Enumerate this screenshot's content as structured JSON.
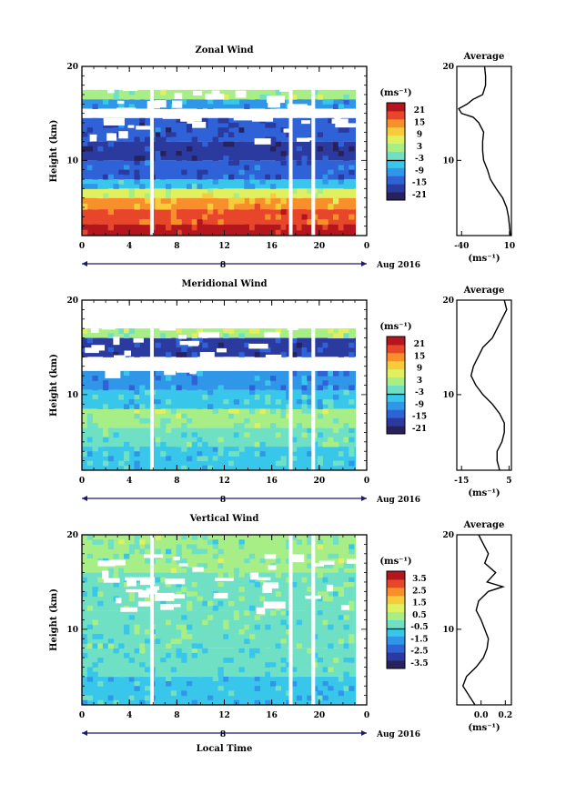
{
  "chart_data": [
    {
      "type": "heatmap",
      "title": "Zonal Wind",
      "ylabel": "Height (km)",
      "xlabel": "",
      "x_ticks": [
        "0",
        "4",
        "8",
        "12",
        "16",
        "20",
        "0"
      ],
      "y_ticks": [
        "10",
        "20"
      ],
      "xlim": [
        0,
        24
      ],
      "ylim": [
        2,
        20
      ],
      "date_marker": "8",
      "date_label": "Aug 2016",
      "colorbar": {
        "unit": "(ms⁻¹)",
        "ticks": [
          "21",
          "15",
          "9",
          "3",
          "-3",
          "-9",
          "-15",
          "-21"
        ],
        "range": [
          -24,
          24
        ]
      },
      "data_gaps_hours": [
        5.9,
        17.6,
        19.5
      ],
      "regions": [
        {
          "z_from": 2.0,
          "z_to": 3.2,
          "value": 21
        },
        {
          "z_from": 3.2,
          "z_to": 4.8,
          "value": 17
        },
        {
          "z_from": 4.8,
          "z_to": 6.0,
          "value": 12
        },
        {
          "z_from": 6.0,
          "z_to": 7.0,
          "value": 5
        },
        {
          "z_from": 7.0,
          "z_to": 8.0,
          "value": -8
        },
        {
          "z_from": 8.0,
          "z_to": 10.0,
          "value": -14
        },
        {
          "z_from": 10.0,
          "z_to": 12.0,
          "value": -19
        },
        {
          "z_from": 12.0,
          "z_to": 14.5,
          "value": -16
        },
        {
          "z_from": 15.5,
          "z_to": 16.5,
          "value": -9
        },
        {
          "z_from": 16.5,
          "z_to": 17.5,
          "value": 1
        }
      ],
      "average": {
        "title": "Average",
        "xlabel": "(ms⁻¹)",
        "x_ticks": [
          "-40",
          "10"
        ],
        "y_ticks": [
          "10",
          "20"
        ],
        "xlim": [
          -45,
          12
        ],
        "z": [
          2,
          3,
          4,
          5,
          6,
          7,
          8,
          9,
          10,
          11,
          12,
          13,
          14,
          14.6,
          15,
          15.5,
          16,
          16.5,
          17,
          18,
          19,
          20
        ],
        "value": [
          11,
          10,
          9,
          7,
          3,
          -4,
          -10,
          -13,
          -17,
          -18,
          -18,
          -17,
          -22,
          -28,
          -40,
          -43,
          -34,
          -28,
          -18,
          -15,
          -15,
          -16
        ]
      }
    },
    {
      "type": "heatmap",
      "title": "Meridional Wind",
      "ylabel": "Height (km)",
      "xlabel": "",
      "x_ticks": [
        "0",
        "4",
        "8",
        "12",
        "16",
        "20",
        "0"
      ],
      "y_ticks": [
        "10",
        "20"
      ],
      "xlim": [
        0,
        24
      ],
      "ylim": [
        2,
        20
      ],
      "date_marker": "8",
      "date_label": "Aug 2016",
      "colorbar": {
        "unit": "(ms⁻¹)",
        "ticks": [
          "21",
          "15",
          "9",
          "3",
          "-3",
          "-9",
          "-15",
          "-21"
        ],
        "range": [
          -24,
          24
        ]
      },
      "data_gaps_hours": [
        5.9,
        17.6,
        19.5
      ],
      "regions": [
        {
          "z_from": 2.0,
          "z_to": 4.5,
          "value": -5
        },
        {
          "z_from": 4.5,
          "z_to": 6.5,
          "value": -2
        },
        {
          "z_from": 6.5,
          "z_to": 8.5,
          "value": 1
        },
        {
          "z_from": 8.5,
          "z_to": 10.5,
          "value": -6
        },
        {
          "z_from": 10.5,
          "z_to": 12.5,
          "value": -11
        },
        {
          "z_from": 14.0,
          "z_to": 16.0,
          "value": -17
        },
        {
          "z_from": 16.0,
          "z_to": 17.0,
          "value": 2
        }
      ],
      "average": {
        "title": "Average",
        "xlabel": "(ms⁻¹)",
        "x_ticks": [
          "-15",
          "5"
        ],
        "y_ticks": [
          "10",
          "20"
        ],
        "xlim": [
          -17,
          6
        ],
        "z": [
          2,
          3,
          4,
          5,
          6,
          7,
          8,
          9,
          10,
          11,
          12,
          13,
          14,
          15,
          16,
          17,
          18,
          19,
          20
        ],
        "value": [
          1,
          0,
          0,
          2,
          3,
          3,
          1,
          -2,
          -6,
          -9,
          -11,
          -10,
          -8,
          -6,
          -2,
          0,
          2,
          4,
          3
        ]
      }
    },
    {
      "type": "heatmap",
      "title": "Vertical Wind",
      "ylabel": "Height (km)",
      "xlabel": "Local Time",
      "x_ticks": [
        "0",
        "4",
        "8",
        "12",
        "16",
        "20",
        "0"
      ],
      "y_ticks": [
        "10",
        "20"
      ],
      "xlim": [
        0,
        24
      ],
      "ylim": [
        2,
        20
      ],
      "date_marker": "8",
      "date_label": "Aug 2016",
      "colorbar": {
        "unit": "(ms⁻¹)",
        "ticks": [
          "3.5",
          "2.5",
          "1.5",
          "0.5",
          "-0.5",
          "-1.5",
          "-2.5",
          "-3.5"
        ],
        "range": [
          -4,
          4
        ]
      },
      "data_gaps_hours": [
        5.9,
        17.6,
        19.5
      ],
      "regions": [
        {
          "z_from": 2.0,
          "z_to": 5.0,
          "value": -1.2
        },
        {
          "z_from": 5.0,
          "z_to": 8.0,
          "value": -0.6
        },
        {
          "z_from": 8.0,
          "z_to": 12.0,
          "value": -0.3
        },
        {
          "z_from": 12.0,
          "z_to": 16.0,
          "value": -0.2
        },
        {
          "z_from": 16.0,
          "z_to": 20.0,
          "value": 0.0
        }
      ],
      "average": {
        "title": "Average",
        "xlabel": "(ms⁻¹)",
        "x_ticks": [
          "0.0",
          "0.2"
        ],
        "y_ticks": [
          "10",
          "20"
        ],
        "xlim": [
          -0.2,
          0.25
        ],
        "z": [
          2,
          3,
          4,
          5,
          6,
          7,
          8,
          9,
          10,
          11,
          12,
          13,
          14,
          14.5,
          15,
          16,
          17,
          18,
          19,
          20
        ],
        "value": [
          -0.05,
          -0.1,
          -0.15,
          -0.12,
          -0.04,
          0.02,
          0.05,
          0.06,
          0.03,
          0.0,
          -0.04,
          -0.02,
          0.06,
          0.18,
          0.05,
          0.12,
          0.03,
          0.06,
          0.02,
          -0.02
        ]
      }
    }
  ]
}
